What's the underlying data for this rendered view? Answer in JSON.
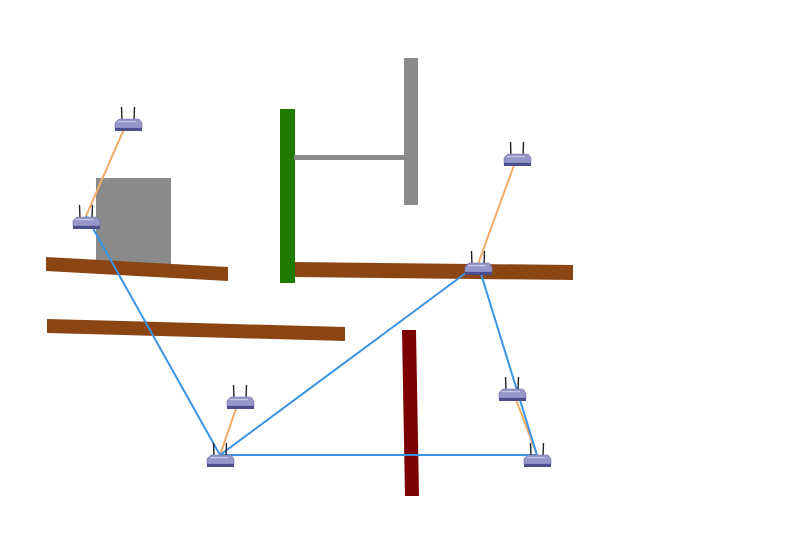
{
  "colors": {
    "background": "#ffffff",
    "wall_wood": "#8b4513",
    "wall_green": "#217a00",
    "wall_gray": "#8a8a8a",
    "wall_darkred": "#7d0000",
    "obstacle_gray": "#8a8a8a",
    "link_mesh": "#3a93e6",
    "link_client": "#f0ac66",
    "router_body": "#8f8fc4",
    "router_base": "#4b4d8c",
    "router_antenna": "#222222"
  },
  "icons": {
    "router": "wireless-router-icon"
  },
  "links": {
    "mesh_count": 5,
    "client_count": 4
  }
}
